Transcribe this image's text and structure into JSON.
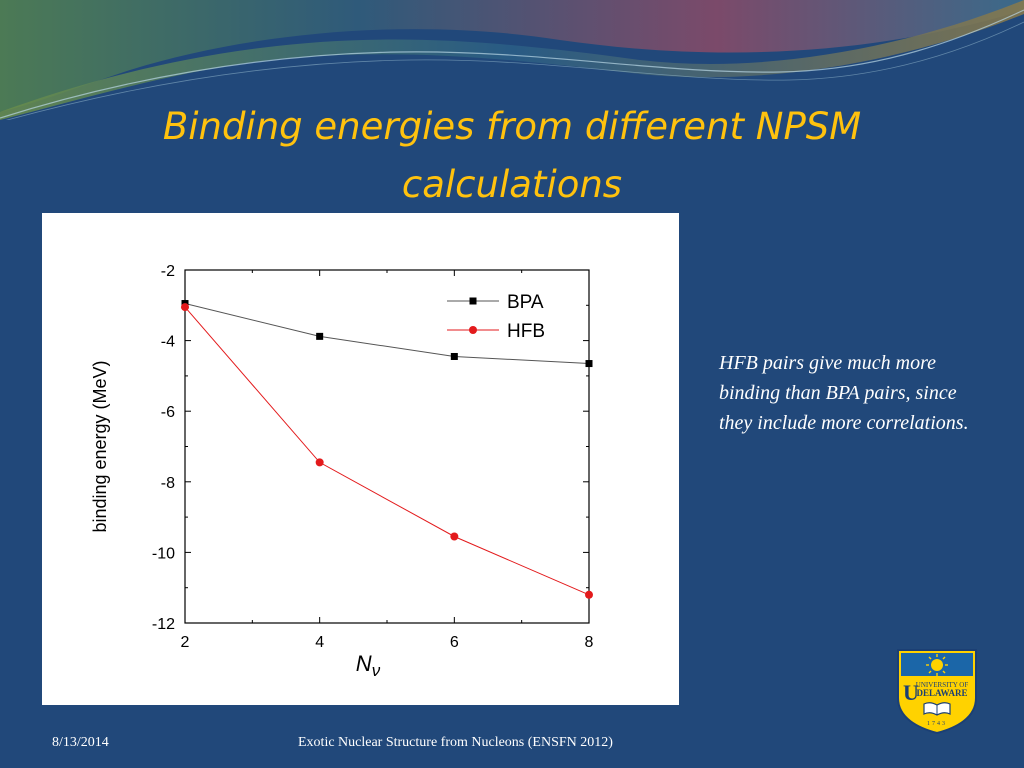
{
  "slide": {
    "title": "Binding energies from different NPSM calculations",
    "note": "HFB pairs give much more binding than BPA pairs, since they include more correlations.",
    "footer_date": "8/13/2014",
    "footer_title": "Exotic Nuclear Structure from Nucleons (ENSFN 2012)",
    "logo": {
      "icon": "university-of-delaware-seal",
      "text_line1": "UNIVERSITY OF",
      "text_line2": "DELAWARE",
      "year": "1743"
    }
  },
  "colors": {
    "background": "#21487a",
    "title": "#ffc20e",
    "text": "#ffffff",
    "bpa_series": "#000000",
    "hfb_series": "#e31a1c"
  },
  "chart_data": {
    "type": "line",
    "xlabel": "N",
    "xlabel_sub": "ν",
    "ylabel": "binding energy (MeV)",
    "xlim": [
      2,
      8
    ],
    "ylim": [
      -12,
      -2
    ],
    "x": [
      2,
      4,
      6,
      8
    ],
    "xticks": [
      2,
      4,
      6,
      8
    ],
    "yticks": [
      -2,
      -4,
      -6,
      -8,
      -10,
      -12
    ],
    "grid": false,
    "legend_position": "top-right",
    "series": [
      {
        "name": "BPA",
        "marker": "square",
        "color": "#000000",
        "line_color": "#555555",
        "values": [
          -2.95,
          -3.88,
          -4.45,
          -4.65
        ]
      },
      {
        "name": "HFB",
        "marker": "circle",
        "color": "#e31a1c",
        "line_color": "#e31a1c",
        "values": [
          -3.05,
          -7.45,
          -9.55,
          -11.2
        ]
      }
    ]
  }
}
